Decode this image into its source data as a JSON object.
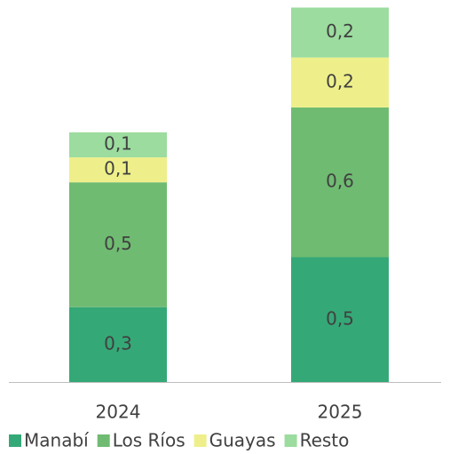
{
  "chart_data": {
    "type": "stacked_bar",
    "categories": [
      "2024",
      "2025"
    ],
    "series": [
      {
        "name": "Manabí",
        "color": "#35a877",
        "values": [
          0.3,
          0.5
        ],
        "value_labels": [
          "0,3",
          "0,5"
        ]
      },
      {
        "name": "Los Ríos",
        "color": "#70bb72",
        "values": [
          0.5,
          0.6
        ],
        "value_labels": [
          "0,5",
          "0,6"
        ]
      },
      {
        "name": "Guayas",
        "color": "#eeef8a",
        "values": [
          0.1,
          0.2
        ],
        "value_labels": [
          "0,1",
          "0,2"
        ]
      },
      {
        "name": "Resto",
        "color": "#9cdc9f",
        "values": [
          0.1,
          0.2
        ],
        "value_labels": [
          "0,1",
          "0,2"
        ]
      }
    ]
  }
}
